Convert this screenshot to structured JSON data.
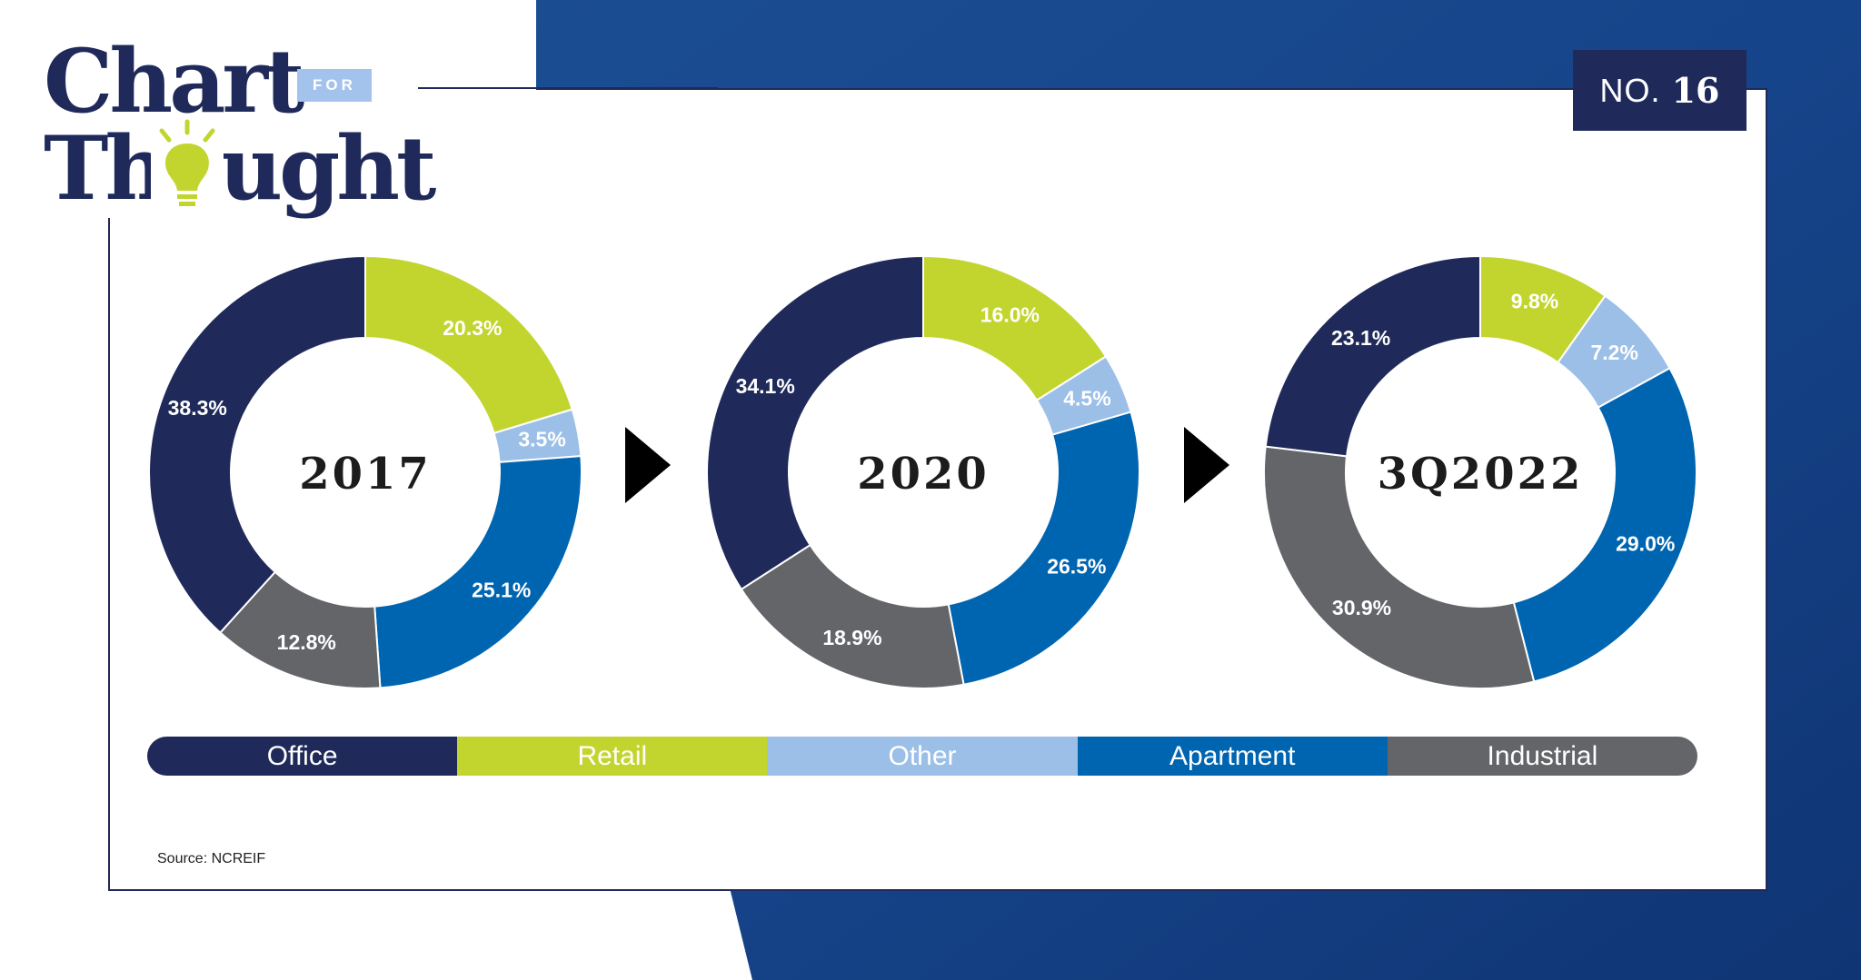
{
  "header": {
    "logo_line1": "Chart",
    "logo_for": "FOR",
    "logo_line2": "Thought",
    "badge_prefix": "NO.",
    "badge_number": "16"
  },
  "colors": {
    "Office": "#1f2a5a",
    "Retail": "#c2d52f",
    "Other": "#9cbfe8",
    "Apartment": "#0065b0",
    "Industrial": "#636569",
    "bulb": "#c2d52f",
    "background_blue": "#1f4a8e"
  },
  "icons": {
    "logo": "lightbulb-icon",
    "arrow": "play-triangle-icon"
  },
  "source": "Source: NCREIF",
  "chart_data": {
    "type": "pie",
    "subtype": "donut",
    "categories": [
      "Retail",
      "Other",
      "Apartment",
      "Industrial",
      "Office"
    ],
    "legend": {
      "placement": "bottom",
      "order": [
        "Office",
        "Retail",
        "Other",
        "Apartment",
        "Industrial"
      ]
    },
    "charts": [
      {
        "label": "2017",
        "values": [
          20.3,
          3.5,
          25.1,
          12.8,
          38.3
        ],
        "value_labels": [
          "20.3%",
          "3.5%",
          "25.1%",
          "12.8%",
          "38.3%"
        ]
      },
      {
        "label": "2020",
        "values": [
          16.0,
          4.5,
          26.5,
          18.9,
          34.1
        ],
        "value_labels": [
          "16.0%",
          "4.5%",
          "26.5%",
          "18.9%",
          "34.1%"
        ]
      },
      {
        "label": "3Q2022",
        "values": [
          9.8,
          7.2,
          29.0,
          30.9,
          23.1
        ],
        "value_labels": [
          "9.8%",
          "7.2%",
          "29.0%",
          "30.9%",
          "23.1%"
        ]
      }
    ]
  }
}
